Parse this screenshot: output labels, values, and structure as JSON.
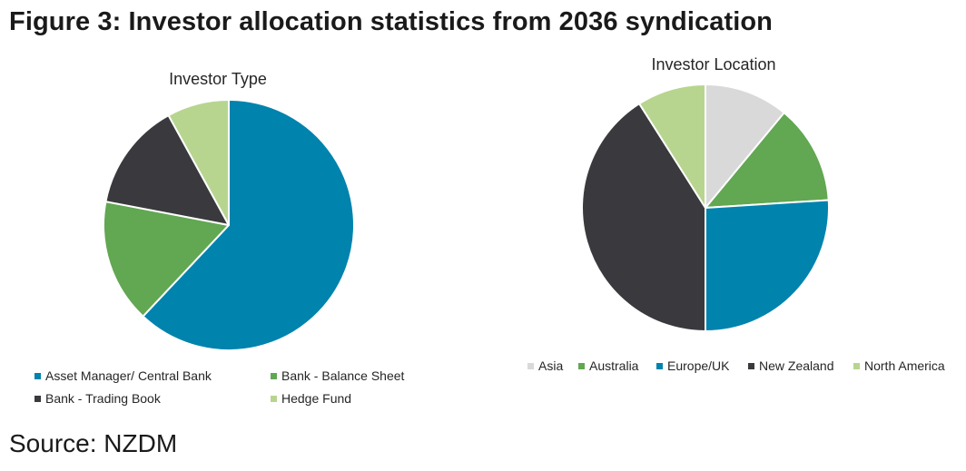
{
  "page": {
    "title": "Figure 3: Investor allocation statistics from 2036 syndication",
    "source": "Source: NZDM"
  },
  "chart_data": [
    {
      "type": "pie",
      "title": "Investor Type",
      "start_angle_deg": 0,
      "direction": "clockwise",
      "legend_position": "bottom",
      "legend_columns": 2,
      "slices": [
        {
          "label": "Asset Manager/ Central Bank",
          "value": 62,
          "color": "#0083AD"
        },
        {
          "label": "Bank - Balance Sheet",
          "value": 16,
          "color": "#62A752"
        },
        {
          "label": "Bank - Trading Book",
          "value": 14,
          "color": "#3A3A3E"
        },
        {
          "label": "Hedge Fund",
          "value": 8,
          "color": "#B7D58F"
        }
      ]
    },
    {
      "type": "pie",
      "title": "Investor Location",
      "start_angle_deg": 0,
      "direction": "clockwise",
      "legend_position": "bottom",
      "legend_columns": 5,
      "slices": [
        {
          "label": "Asia",
          "value": 11,
          "color": "#D9D9D9"
        },
        {
          "label": "Australia",
          "value": 13,
          "color": "#62A752"
        },
        {
          "label": "Europe/UK",
          "value": 26,
          "color": "#0083AD"
        },
        {
          "label": "New Zealand",
          "value": 41,
          "color": "#3A3A3E"
        },
        {
          "label": "North America",
          "value": 9,
          "color": "#B7D58F"
        }
      ]
    }
  ]
}
